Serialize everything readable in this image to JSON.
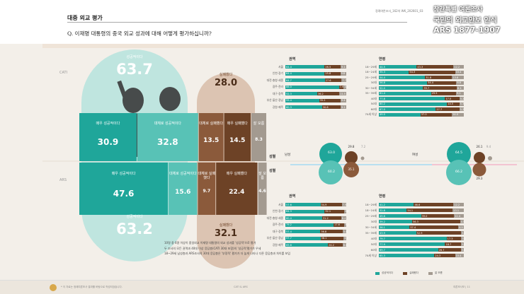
{
  "header": {
    "section_title": "대중 외교 평가",
    "question": "Q. 이재명 대통령의 중국 외교 성과에 대해 어떻게 평가하십니까?",
    "publication": "정례여론조사_162차     WK_202601_03",
    "logo_lines": [
      "창간특별 여론조사",
      "국민의 외교안보 인식",
      "ARS 1877-1907"
    ]
  },
  "colors": {
    "positive": "#1fa69a",
    "positive_light": "#58c2b6",
    "positive_bg": "#bfe5df",
    "negative": "#6d4226",
    "negative_mid": "#8b5a3b",
    "negative_bg": "#dcc4b2",
    "unknown": "#a39a90"
  },
  "chart_data": [
    {
      "type": "bar",
      "title": "대중 외교 평가",
      "series": [
        {
          "name": "CATI",
          "categories": [
            "매우 성공적이다",
            "대체로 성공적이다",
            "대체로 실패했다",
            "매우 실패했다",
            "잘 모름"
          ],
          "values": [
            30.9,
            32.8,
            13.5,
            14.5,
            8.3
          ],
          "positive_total_label": "성공적이다",
          "positive_total": 63.7,
          "negative_total_label": "실패했다",
          "negative_total": 28.0
        },
        {
          "name": "ARS",
          "categories": [
            "매우 성공적이다",
            "대체로 성공적이다",
            "대체로 실패했다",
            "매우 실패했다",
            "잘 모름"
          ],
          "values": [
            47.6,
            15.6,
            9.7,
            22.4,
            4.6
          ],
          "positive_total_label": "성공적이다",
          "positive_total": 63.2,
          "negative_total_label": "실패했다",
          "negative_total": 32.1
        }
      ]
    },
    {
      "type": "bar",
      "title": "권역",
      "series_name": "CATI",
      "categories": [
        "서울",
        "인천·경기",
        "대전·충청·세종",
        "광주·전라",
        "대구·경북",
        "부산·울산·경남",
        "강원·제주"
      ],
      "series": [
        {
          "name": "성공적이다",
          "values": [
            64.4,
            64.4,
            64.7,
            88.0,
            52.3,
            55.4,
            60.3
          ]
        },
        {
          "name": "실패했다",
          "values": [
            26.5,
            25.8,
            27.6,
            7.9,
            36.2,
            35.2,
            30.6
          ]
        },
        {
          "name": "잘 모름",
          "values": [
            9.1,
            9.8,
            7.7,
            4.1,
            11.5,
            9.4,
            9.1
          ]
        }
      ]
    },
    {
      "type": "bar",
      "title": "연령",
      "series_name": "CATI",
      "categories": [
        "18~29세",
        "18~24세",
        "25~29세",
        "30대",
        "30~34세",
        "35~39세",
        "40대",
        "50대",
        "60대",
        "70세 이상"
      ],
      "series": [
        {
          "name": "성공적이다",
          "values": [
            44.5,
            35.3,
            54.4,
            56.8,
            52.0,
            61.4,
            77.8,
            80.2,
            67.0,
            49.0
          ]
        },
        {
          "name": "실패했다",
          "values": [
            43.3,
            54.3,
            31.8,
            34.4,
            39.7,
            29.5,
            17.0,
            14.5,
            27.7,
            37.0
          ]
        },
        {
          "name": "잘 모름",
          "values": [
            12.2,
            10.4,
            13.8,
            8.8,
            8.4,
            9.1,
            5.2,
            5.3,
            5.3,
            14.0
          ]
        }
      ]
    },
    {
      "type": "bar",
      "title": "성별",
      "categories": [
        "남성",
        "여성"
      ],
      "series": [
        {
          "name": "CATI 성공적이다",
          "values": [
            63.0,
            64.5
          ]
        },
        {
          "name": "CATI 실패했다",
          "values": [
            29.8,
            26.1
          ]
        },
        {
          "name": "CATI 잘 모름",
          "values": [
            7.2,
            9.4
          ]
        },
        {
          "name": "ARS 성공적이다",
          "values": [
            60.2,
            66.2
          ]
        },
        {
          "name": "ARS 실패했다",
          "values": [
            35.1,
            29.3
          ]
        }
      ]
    },
    {
      "type": "bar",
      "title": "권역",
      "series_name": "ARS",
      "categories": [
        "서울",
        "인천·경기",
        "대전·충청·세종",
        "광주·전라",
        "대구·경북",
        "부산·울산·경남",
        "강원·제주"
      ],
      "series": [
        {
          "name": "성공적이다",
          "values": [
            57.6,
            64.3,
            60.4,
            79.2,
            57.4,
            57.7,
            69.8
          ]
        },
        {
          "name": "실패했다",
          "values": [
            34.9,
            32.1,
            31.2,
            17.6,
            36.8,
            38.1,
            24.2
          ]
        },
        {
          "name": "잘 모름",
          "values": [
            7.5,
            3.6,
            8.4,
            3.2,
            5.8,
            4.2,
            6.0
          ]
        }
      ]
    },
    {
      "type": "bar",
      "title": "연령",
      "series_name": "ARS",
      "categories": [
        "18~29세",
        "18~24세",
        "25~29세",
        "30대",
        "30~34세",
        "35~39세",
        "40대",
        "50대",
        "60대",
        "70세 이상"
      ],
      "series": [
        {
          "name": "성공적이다",
          "values": [
            41.2,
            32.8,
            49.6,
            39.2,
            36.1,
            43.9,
            79.7,
            77.9,
            69.7,
            65.3
          ]
        },
        {
          "name": "실패했다",
          "values": [
            46.6,
            54.1,
            39.0,
            56.3,
            57.4,
            52.9,
            17.3,
            18.7,
            26.7,
            24.3
          ]
        },
        {
          "name": "잘 모름",
          "values": [
            12.2,
            13.1,
            11.4,
            4.5,
            6.5,
            3.2,
            3.0,
            3.4,
            3.6,
            10.4
          ]
        }
      ]
    }
  ],
  "labels": {
    "cati": "CATI",
    "ars": "ARS",
    "region": "권역",
    "age": "연령",
    "gender": "성별",
    "male": "남성",
    "female": "여성",
    "legend": [
      "성공적이다",
      "실패했다",
      "잘 모름"
    ]
  },
  "notes": [
    "10명 중 6명 이상이 중일외교 이재명 대통령의 외교 성과를 '성공적'으로 평가",
    "두 조사의 모든 권역과 40대 이상 응답층(CATI 30대 포함)의 '성공적'평가가 우세",
    "18~29세 남성층과 ARS조사의 30대 응답층은 '부정적' 평가가 더 높게 나타나 다른 응답층과 차이를 보임"
  ],
  "footer": {
    "left": "* 이 자료는 정례여론조사 결과를 바탕으로 작성되었습니다.",
    "center": "CATI & ARS",
    "right": "여론조사보 | 11"
  }
}
